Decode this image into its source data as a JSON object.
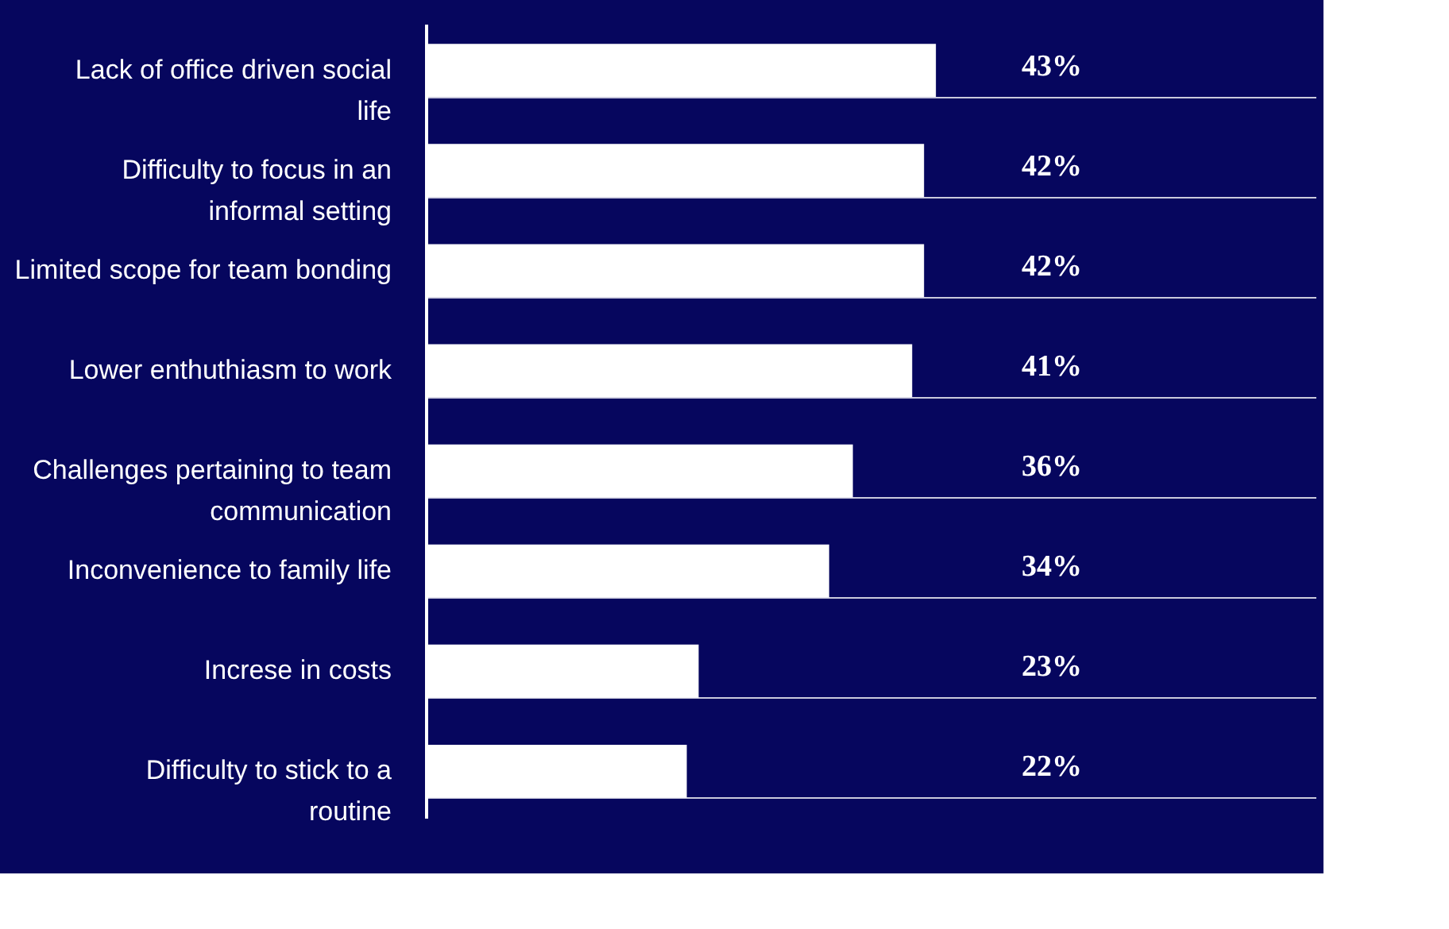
{
  "chart_data": {
    "type": "bar",
    "orientation": "horizontal",
    "categories": [
      "Lack of office driven social life",
      "Difficulty to focus in an informal setting",
      "Limited scope for team bonding",
      "Lower enthuthiasm to work",
      "Challenges pertaining to team communication",
      "Inconvenience to family life",
      "Increse in costs",
      "Difficulty to stick to a routine"
    ],
    "values": [
      43,
      42,
      42,
      41,
      36,
      34,
      23,
      22
    ],
    "value_labels": [
      "43%",
      "42%",
      "42%",
      "41%",
      "36%",
      "34%",
      "23%",
      "22%"
    ],
    "color": "#ffffff",
    "xlim": [
      0,
      75
    ],
    "grid": "y",
    "tick_labels": "y"
  }
}
